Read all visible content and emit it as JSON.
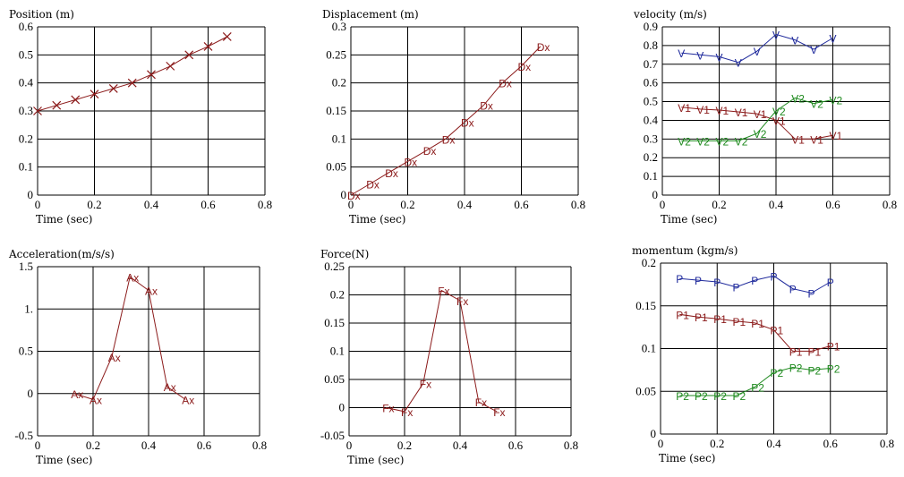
{
  "colors": {
    "red": "#8b1a1a",
    "blue": "#1f2a9c",
    "green": "#1f8a1f",
    "grid": "#000000"
  },
  "chart_data": [
    {
      "id": "position",
      "type": "scatter",
      "title": "Position (m)",
      "xlabel": "Time (sec)",
      "xlim": [
        0,
        0.8
      ],
      "ylim": [
        0,
        0.6
      ],
      "xticks": [
        "0",
        "0.2",
        "0.4",
        "0.6",
        "0.8"
      ],
      "yticks": [
        "0",
        "0.1",
        "0.2",
        "0.3",
        "0.4",
        "0.5",
        "0.6"
      ],
      "grid": true,
      "series": [
        {
          "marker": "x",
          "color": "red",
          "x": [
            0.0,
            0.067,
            0.133,
            0.2,
            0.267,
            0.333,
            0.4,
            0.467,
            0.533,
            0.6,
            0.667
          ],
          "y": [
            0.3,
            0.32,
            0.34,
            0.36,
            0.38,
            0.4,
            0.43,
            0.46,
            0.5,
            0.53,
            0.565
          ]
        }
      ]
    },
    {
      "id": "displacement",
      "type": "scatter",
      "title": "Displacement (m)",
      "xlabel": "Time (sec)",
      "xlim": [
        0,
        0.8
      ],
      "ylim": [
        0,
        0.3
      ],
      "xticks": [
        "0",
        "0.2",
        "0.4",
        "0.6",
        "0.8"
      ],
      "yticks": [
        "0",
        "0.05",
        "0.1",
        "0.15",
        "0.2",
        "0.25",
        "0.3"
      ],
      "grid": true,
      "series": [
        {
          "marker": "Dx",
          "color": "red",
          "x": [
            0.0,
            0.067,
            0.133,
            0.2,
            0.267,
            0.333,
            0.4,
            0.467,
            0.533,
            0.6,
            0.667
          ],
          "y": [
            0.0,
            0.02,
            0.04,
            0.06,
            0.08,
            0.1,
            0.13,
            0.16,
            0.2,
            0.23,
            0.265
          ]
        }
      ]
    },
    {
      "id": "velocity",
      "type": "scatter",
      "title": "velocity (m/s)",
      "xlabel": "Time (sec)",
      "xlim": [
        0,
        0.8
      ],
      "ylim": [
        0,
        0.9
      ],
      "xticks": [
        "0",
        "0.2",
        "0.4",
        "0.6",
        "0.8"
      ],
      "yticks": [
        "0",
        "0.1",
        "0.2",
        "0.3",
        "0.4",
        "0.5",
        "0.6",
        "0.7",
        "0.8",
        "0.9"
      ],
      "grid": true,
      "series": [
        {
          "marker": "V",
          "color": "blue",
          "x": [
            0.067,
            0.133,
            0.2,
            0.267,
            0.333,
            0.4,
            0.467,
            0.533,
            0.6
          ],
          "y": [
            0.76,
            0.75,
            0.74,
            0.71,
            0.77,
            0.86,
            0.83,
            0.78,
            0.84
          ]
        },
        {
          "marker": "V1",
          "color": "red",
          "x": [
            0.067,
            0.133,
            0.2,
            0.267,
            0.333,
            0.4,
            0.467,
            0.533,
            0.6
          ],
          "y": [
            0.47,
            0.46,
            0.455,
            0.445,
            0.435,
            0.4,
            0.3,
            0.3,
            0.32
          ]
        },
        {
          "marker": "V2",
          "color": "green",
          "x": [
            0.067,
            0.133,
            0.2,
            0.267,
            0.333,
            0.4,
            0.467,
            0.533,
            0.6
          ],
          "y": [
            0.29,
            0.29,
            0.29,
            0.29,
            0.33,
            0.45,
            0.52,
            0.49,
            0.51
          ]
        }
      ]
    },
    {
      "id": "acceleration",
      "type": "scatter",
      "title": "Acceleration(m/s/s)",
      "xlabel": "Time (sec)",
      "xlim": [
        0,
        0.8
      ],
      "ylim": [
        -0.5,
        1.5
      ],
      "xticks": [
        "0",
        "0.2",
        "0.4",
        "0.6",
        "0.8"
      ],
      "yticks": [
        "-0.5",
        "0",
        "0.5",
        "1.",
        "1.5"
      ],
      "grid": true,
      "series": [
        {
          "marker": "Ax",
          "color": "red",
          "x": [
            0.133,
            0.2,
            0.267,
            0.333,
            0.4,
            0.467,
            0.533
          ],
          "y": [
            0.0,
            -0.07,
            0.43,
            1.38,
            1.22,
            0.08,
            -0.07
          ]
        }
      ]
    },
    {
      "id": "force",
      "type": "scatter",
      "title": "Force(N)",
      "xlabel": "Time (sec)",
      "xlim": [
        0,
        0.8
      ],
      "ylim": [
        -0.05,
        0.25
      ],
      "xticks": [
        "0",
        "0.2",
        "0.4",
        "0.6",
        "0.8"
      ],
      "yticks": [
        "-0.05",
        "0",
        "0.05",
        "0.1",
        "0.15",
        "0.2",
        "0.25"
      ],
      "grid": true,
      "series": [
        {
          "marker": "Fx",
          "color": "red",
          "x": [
            0.133,
            0.2,
            0.267,
            0.333,
            0.4,
            0.467,
            0.533
          ],
          "y": [
            0.0,
            -0.007,
            0.043,
            0.208,
            0.19,
            0.01,
            -0.007
          ]
        }
      ]
    },
    {
      "id": "momentum",
      "type": "scatter",
      "title": "momentum (kgm/s)",
      "xlabel": "Time (sec)",
      "xlim": [
        0,
        0.8
      ],
      "ylim": [
        0,
        0.2
      ],
      "xticks": [
        "0",
        "0.2",
        "0.4",
        "0.6",
        "0.8"
      ],
      "yticks": [
        "0",
        "0.05",
        "0.1",
        "0.15",
        "0.2"
      ],
      "grid": true,
      "series": [
        {
          "marker": "P",
          "color": "blue",
          "x": [
            0.067,
            0.133,
            0.2,
            0.267,
            0.333,
            0.4,
            0.467,
            0.533,
            0.6
          ],
          "y": [
            0.182,
            0.18,
            0.178,
            0.172,
            0.18,
            0.185,
            0.17,
            0.165,
            0.178
          ]
        },
        {
          "marker": "P1",
          "color": "red",
          "x": [
            0.067,
            0.133,
            0.2,
            0.267,
            0.333,
            0.4,
            0.467,
            0.533,
            0.6
          ],
          "y": [
            0.14,
            0.137,
            0.135,
            0.132,
            0.13,
            0.122,
            0.097,
            0.097,
            0.103
          ]
        },
        {
          "marker": "P2",
          "color": "green",
          "x": [
            0.067,
            0.133,
            0.2,
            0.267,
            0.333,
            0.4,
            0.467,
            0.533,
            0.6
          ],
          "y": [
            0.045,
            0.045,
            0.045,
            0.045,
            0.055,
            0.072,
            0.078,
            0.075,
            0.077
          ]
        }
      ]
    }
  ]
}
